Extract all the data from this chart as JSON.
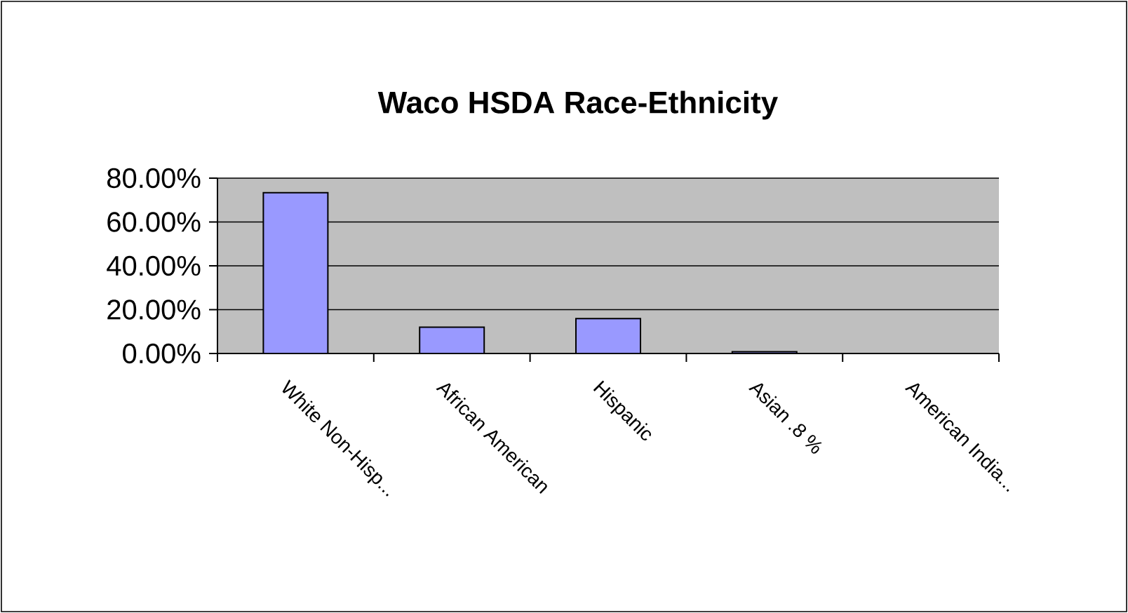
{
  "chart_data": {
    "type": "bar",
    "title": "Waco HSDA Race-Ethnicity",
    "categories": [
      "White Non-Hisp...",
      "African American",
      "Hispanic",
      "Asian .8 %",
      "American India..."
    ],
    "values": [
      73.4,
      12.0,
      15.9,
      0.8,
      null
    ],
    "color": "#9999ff",
    "ylim": [
      0,
      80
    ],
    "yticks": [
      {
        "value": 0,
        "label": "0.00%"
      },
      {
        "value": 20,
        "label": "20.00%"
      },
      {
        "value": 40,
        "label": "40.00%"
      },
      {
        "value": 60,
        "label": "60.00%"
      },
      {
        "value": 80,
        "label": "80.00%"
      }
    ],
    "grid": "y"
  }
}
